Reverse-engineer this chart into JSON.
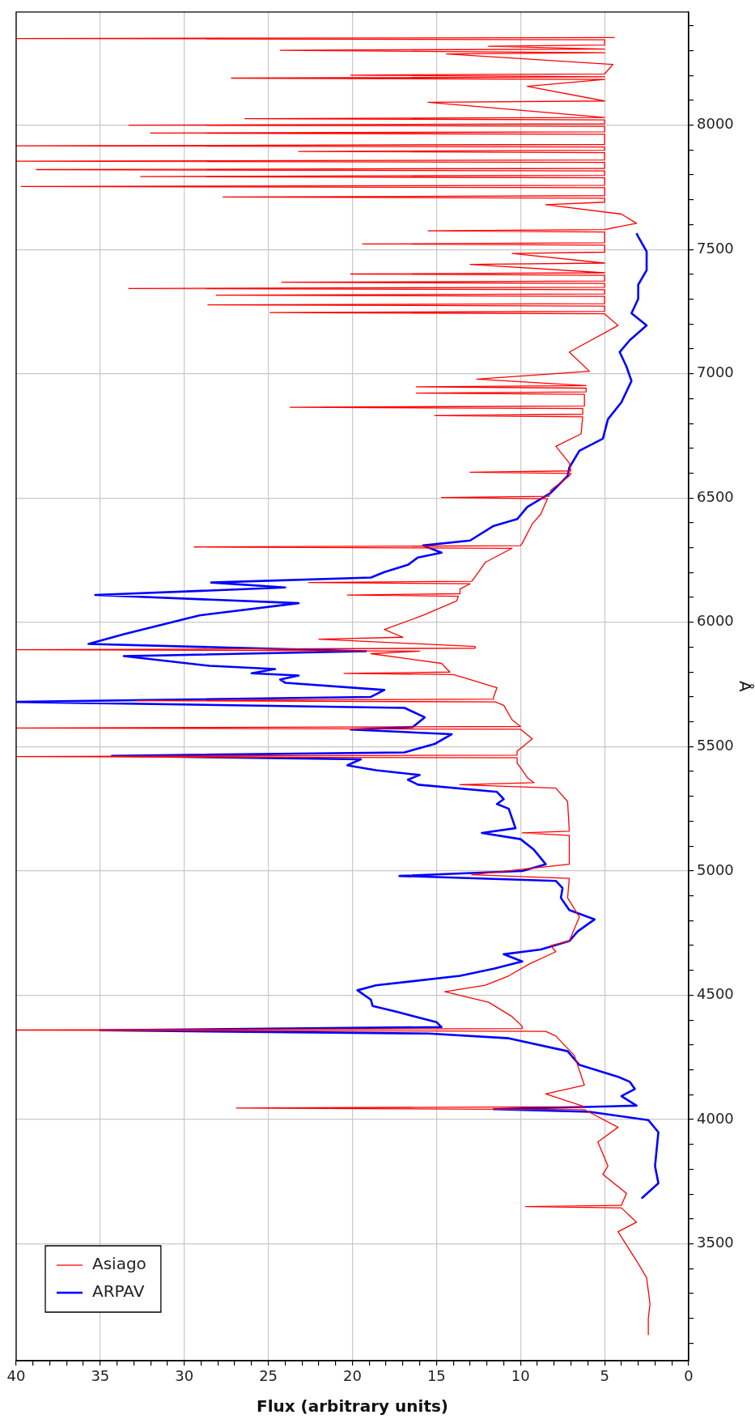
{
  "chart_data": {
    "type": "line",
    "xlabel": "Flux (arbitrary units)",
    "ylabel": "Å",
    "xlim": [
      40,
      0
    ],
    "ylim": [
      3030,
      8455
    ],
    "yticks": [
      {
        "value": 3100,
        "label": null
      },
      {
        "value": 3200,
        "label": null
      },
      {
        "value": 3300,
        "label": null
      },
      {
        "value": 3400,
        "label": null
      },
      3500,
      {
        "value": 3600,
        "label": null
      },
      {
        "value": 3700,
        "label": null
      },
      {
        "value": 3800,
        "label": null
      },
      {
        "value": 3900,
        "label": null
      },
      4000,
      {
        "value": 4100,
        "label": null
      },
      {
        "value": 4200,
        "label": null
      },
      {
        "value": 4300,
        "label": null
      },
      {
        "value": 4400,
        "label": null
      },
      4500,
      {
        "value": 4600,
        "label": null
      },
      {
        "value": 4700,
        "label": null
      },
      {
        "value": 4800,
        "label": null
      },
      {
        "value": 4900,
        "label": null
      },
      5000,
      {
        "value": 5100,
        "label": null
      },
      {
        "value": 5200,
        "label": null
      },
      {
        "value": 5300,
        "label": null
      },
      {
        "value": 5400,
        "label": null
      },
      5500,
      {
        "value": 5600,
        "label": null
      },
      {
        "value": 5700,
        "label": null
      },
      {
        "value": 5800,
        "label": null
      },
      {
        "value": 5900,
        "label": null
      },
      6000,
      {
        "value": 6100,
        "label": null
      },
      {
        "value": 6200,
        "label": null
      },
      {
        "value": 6300,
        "label": null
      },
      {
        "value": 6400,
        "label": null
      },
      6500,
      {
        "value": 6600,
        "label": null
      },
      {
        "value": 6700,
        "label": null
      },
      {
        "value": 6800,
        "label": null
      },
      {
        "value": 6900,
        "label": null
      },
      7000,
      {
        "value": 7100,
        "label": null
      },
      {
        "value": 7200,
        "label": null
      },
      {
        "value": 7300,
        "label": null
      },
      {
        "value": 7400,
        "label": null
      },
      7500,
      {
        "value": 7600,
        "label": null
      },
      {
        "value": 7700,
        "label": null
      },
      {
        "value": 7800,
        "label": null
      },
      {
        "value": 7900,
        "label": null
      },
      8000,
      {
        "value": 8100,
        "label": null
      },
      {
        "value": 8200,
        "label": null
      },
      {
        "value": 8300,
        "label": null
      },
      {
        "value": 8400,
        "label": null
      }
    ],
    "xticks": [
      0,
      {
        "value": 1,
        "label": null
      },
      {
        "value": 2,
        "label": null
      },
      {
        "value": 3,
        "label": null
      },
      {
        "value": 4,
        "label": null
      },
      5,
      {
        "value": 6,
        "label": null
      },
      {
        "value": 7,
        "label": null
      },
      {
        "value": 8,
        "label": null
      },
      {
        "value": 9,
        "label": null
      },
      10,
      {
        "value": 11,
        "label": null
      },
      {
        "value": 12,
        "label": null
      },
      {
        "value": 13,
        "label": null
      },
      {
        "value": 14,
        "label": null
      },
      15,
      {
        "value": 16,
        "label": null
      },
      {
        "value": 17,
        "label": null
      },
      {
        "value": 18,
        "label": null
      },
      {
        "value": 19,
        "label": null
      },
      20,
      {
        "value": 21,
        "label": null
      },
      {
        "value": 22,
        "label": null
      },
      {
        "value": 23,
        "label": null
      },
      {
        "value": 24,
        "label": null
      },
      25,
      {
        "value": 26,
        "label": null
      },
      {
        "value": 27,
        "label": null
      },
      {
        "value": 28,
        "label": null
      },
      {
        "value": 29,
        "label": null
      },
      30,
      {
        "value": 31,
        "label": null
      },
      {
        "value": 32,
        "label": null
      },
      {
        "value": 33,
        "label": null
      },
      {
        "value": 34,
        "label": null
      },
      35,
      {
        "value": 36,
        "label": null
      },
      {
        "value": 37,
        "label": null
      },
      {
        "value": 38,
        "label": null
      },
      {
        "value": 39,
        "label": null
      },
      40
    ],
    "grid": true,
    "legend": "bottom left",
    "marker": "none",
    "line_style": "solid",
    "series": [
      {
        "name": "Asiago",
        "color": "#ff0000",
        "values": [
          3133,
          3200,
          3258,
          3364,
          3432,
          3549,
          3587,
          3645,
          3650,
          3655,
          3703,
          3780,
          3813,
          3910,
          3969,
          4040,
          4046,
          4052,
          4103,
          4138,
          4258,
          4336,
          4355,
          4360,
          4366,
          4375,
          4414,
          4472,
          4514,
          4540,
          4578,
          4625,
          4675,
          4700,
          4718,
          4815,
          4892,
          4970,
          4985,
          5027,
          5143,
          5153,
          5160,
          5279,
          5333,
          5347,
          5355,
          5376,
          5434,
          5455,
          5460,
          5466,
          5482,
          5531,
          5570,
          5575,
          5581,
          5608,
          5666,
          5680,
          5685,
          5691,
          5700,
          5737,
          5776,
          5790,
          5795,
          5800,
          5835,
          5874,
          5884,
          5890,
          5896,
          5903,
          5932,
          5940,
          5971,
          6028,
          6086,
          6105,
          6110,
          6115,
          6134,
          6155,
          6160,
          6165,
          6183,
          6241,
          6298,
          6303,
          6308,
          6318,
          6396,
          6435,
          6497,
          6502,
          6507,
          6532,
          6589,
          6599,
          6604,
          6609,
          6641,
          6708,
          6758,
          6827,
          6832,
          6837,
          6860,
          6865,
          6870,
          6917,
          6922,
          6927,
          6942,
          6947,
          6952,
          6978,
          7010,
          7087,
          7194,
          7241,
          7246,
          7251,
          7272,
          7277,
          7282,
          7311,
          7316,
          7321,
          7338,
          7343,
          7348,
          7363,
          7368,
          7373,
          7396,
          7401,
          7406,
          7440,
          7445,
          7484,
          7489,
          7517,
          7522,
          7527,
          7570,
          7575,
          7580,
          7605,
          7642,
          7680,
          7690,
          7706,
          7711,
          7716,
          7748,
          7753,
          7758,
          7788,
          7793,
          7798,
          7816,
          7821,
          7826,
          7850,
          7855,
          7860,
          7889,
          7894,
          7899,
          7912,
          7917,
          7922,
          7963,
          7968,
          7973,
          7995,
          8000,
          8005,
          8021,
          8026,
          8031,
          8092,
          8097,
          8156,
          8184,
          8189,
          8194,
          8201,
          8206,
          8244,
          8286,
          8291,
          8301,
          8306,
          8317,
          8322,
          8343,
          8348,
          8352
        ],
        "x": [
          2.4,
          2.4,
          2.3,
          2.5,
          3.1,
          4.2,
          3.1,
          4.0,
          9.7,
          4.0,
          3.7,
          5.1,
          4.8,
          5.4,
          4.2,
          6.2,
          26.9,
          6.2,
          8.5,
          6.2,
          6.8,
          7.9,
          8.5,
          40,
          9.9,
          9.9,
          10.5,
          11.9,
          14.5,
          12.1,
          10.7,
          9.5,
          7.9,
          8.2,
          7.1,
          6.5,
          7.2,
          7.1,
          12.9,
          7.1,
          7.1,
          9.9,
          7.1,
          7.2,
          7.9,
          13.6,
          9.2,
          9.6,
          10.2,
          10.2,
          40,
          10.2,
          10.2,
          9.3,
          10.0,
          40,
          10.0,
          10.5,
          11.0,
          11.5,
          32.8,
          11.6,
          11.6,
          11.4,
          13.3,
          14.0,
          20.5,
          14.2,
          14.7,
          18.9,
          16.0,
          40,
          12.7,
          12.7,
          22.0,
          17.0,
          18.1,
          15.8,
          13.8,
          13.7,
          20.3,
          13.6,
          13.6,
          13.0,
          22.6,
          12.9,
          12.7,
          12.1,
          10.5,
          29.4,
          10.0,
          9.9,
          9.3,
          8.8,
          8.4,
          14.7,
          8.3,
          8.2,
          7.1,
          7.0,
          13.0,
          7.0,
          7.1,
          7.9,
          6.4,
          6.3,
          15.1,
          6.3,
          6.3,
          23.7,
          6.2,
          6.2,
          16.2,
          6.1,
          6.1,
          16.2,
          6.1,
          12.6,
          5.9,
          7.1,
          4.2,
          5.0,
          24.9,
          5.0,
          5.0,
          28.6,
          5.0,
          5.0,
          28.1,
          5.0,
          5.0,
          33.3,
          5.0,
          5.0,
          24.2,
          5.0,
          5.0,
          20.1,
          5.0,
          13.0,
          5.0,
          10.5,
          5.0,
          5.0,
          19.4,
          5.0,
          5.0,
          15.5,
          5.0,
          3.1,
          4.0,
          8.5,
          5.0,
          5.0,
          27.7,
          5.0,
          5.0,
          39.7,
          5.0,
          5.0,
          32.6,
          5.0,
          5.0,
          38.8,
          5.0,
          5.0,
          40,
          5.0,
          5.0,
          23.2,
          5.0,
          5.0,
          40,
          5.0,
          5.0,
          32.0,
          5.0,
          5.0,
          33.3,
          5.0,
          5.0,
          26.4,
          5.0,
          15.5,
          5.0,
          9.6,
          5.0,
          27.2,
          5.0,
          20.1,
          5.0,
          4.5,
          14.4,
          5.0,
          24.3,
          5.0,
          11.9,
          5.0,
          5.0,
          40,
          4.4
        ]
      },
      {
        "name": "ARPAV",
        "color": "#0000ff",
        "values": [
          3683,
          3744,
          3813,
          3949,
          3998,
          4031,
          4042,
          4056,
          4094,
          4123,
          4152,
          4172,
          4220,
          4275,
          4327,
          4346,
          4359,
          4372,
          4392,
          4434,
          4457,
          4482,
          4520,
          4540,
          4578,
          4607,
          4636,
          4665,
          4684,
          4718,
          4757,
          4805,
          4843,
          4892,
          4931,
          4960,
          4980,
          5000,
          5027,
          5085,
          5128,
          5153,
          5172,
          5250,
          5269,
          5289,
          5318,
          5347,
          5367,
          5386,
          5405,
          5425,
          5449,
          5463,
          5477,
          5511,
          5550,
          5569,
          5579,
          5618,
          5656,
          5680,
          5700,
          5728,
          5757,
          5770,
          5786,
          5795,
          5812,
          5825,
          5864,
          5884,
          5913,
          5952,
          6028,
          6077,
          6110,
          6140,
          6160,
          6180,
          6202,
          6231,
          6261,
          6280,
          6309,
          6329,
          6388,
          6415,
          6464,
          6521,
          6589,
          6622,
          6690,
          6739,
          6817,
          6885,
          6971,
          7029,
          7087,
          7135,
          7194,
          7243,
          7301,
          7358,
          7416,
          7492,
          7551,
          7565
        ],
        "x": [
          2.8,
          1.8,
          2.0,
          1.8,
          2.4,
          5.9,
          11.6,
          3.1,
          4.0,
          3.2,
          3.5,
          4.2,
          6.5,
          7.2,
          10.7,
          15.5,
          35.0,
          14.7,
          15.0,
          17.4,
          18.8,
          18.9,
          19.7,
          18.6,
          13.6,
          11.6,
          9.9,
          11.0,
          8.8,
          7.1,
          6.6,
          5.6,
          7.1,
          7.6,
          7.5,
          7.9,
          17.2,
          9.9,
          8.5,
          9.2,
          10.0,
          12.3,
          10.3,
          10.7,
          11.4,
          11.0,
          11.4,
          16.1,
          16.7,
          16.0,
          18.6,
          20.3,
          19.5,
          34.3,
          16.9,
          15.1,
          14.1,
          20.1,
          16.4,
          15.7,
          16.9,
          40,
          18.9,
          18.1,
          24.0,
          24.3,
          23.2,
          26.0,
          24.6,
          28.5,
          33.6,
          19.2,
          35.7,
          33.6,
          29.1,
          23.2,
          35.3,
          24.0,
          28.4,
          18.9,
          18.1,
          16.7,
          16.1,
          14.7,
          15.8,
          13.0,
          11.6,
          10.2,
          9.6,
          8.2,
          7.2,
          7.1,
          6.5,
          5.1,
          4.8,
          4.0,
          3.4,
          3.7,
          4.1,
          3.5,
          2.5,
          3.4,
          3.0,
          3.0,
          2.5,
          2.5,
          3.0,
          3.1
        ]
      }
    ]
  }
}
